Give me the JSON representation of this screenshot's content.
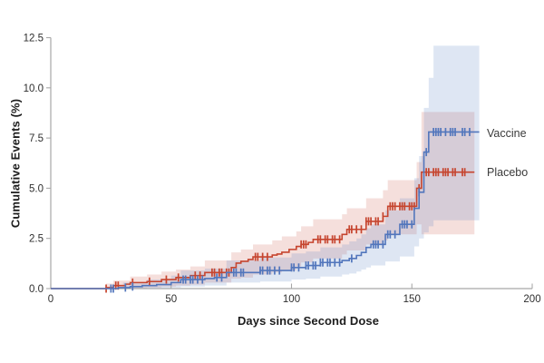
{
  "figure": {
    "background": "#ffffff"
  },
  "axes": {
    "x": {
      "label": "Days since Second Dose",
      "tick_labels": [
        "0",
        "50",
        "100",
        "150",
        "200"
      ],
      "tick_values": [
        0,
        50,
        100,
        150,
        200
      ],
      "range": [
        0,
        200
      ]
    },
    "y": {
      "label": "Cumulative Events (%)",
      "tick_labels": [
        "0.0",
        "2.5",
        "5.0",
        "7.5",
        "10.0",
        "12.5"
      ],
      "tick_values": [
        0,
        2.5,
        5,
        7.5,
        10,
        12.5
      ],
      "range": [
        0,
        12.5
      ]
    },
    "spine_color": "#a8a8a8",
    "tick_text_color": "#2e2e2e"
  },
  "legend": {
    "position": "right-of-curve-ends",
    "items": [
      {
        "label": "Vaccine",
        "color": "#5276bc"
      },
      {
        "label": "Placebo",
        "color": "#c6452f"
      }
    ]
  },
  "chart_data": {
    "type": "line",
    "subtype": "kaplan-meier-step-curves-with-confidence-bands-and-censor-ticks",
    "title": "",
    "xlabel": "Days since Second Dose",
    "ylabel": "Cumulative Events (%)",
    "xlim": [
      0,
      200
    ],
    "ylim": [
      0,
      12.5
    ],
    "x_ticks": [
      0,
      50,
      100,
      150,
      200
    ],
    "y_ticks": [
      0,
      2.5,
      5,
      7.5,
      10,
      12.5
    ],
    "grid": false,
    "legend_position": "right of final flat segments",
    "series": [
      {
        "name": "Placebo",
        "color": "#c6452f",
        "band_color": "rgba(198,67,47,0.17)",
        "end_day": 176,
        "steps": [
          [
            0,
            0
          ],
          [
            23,
            0.05
          ],
          [
            26,
            0.15
          ],
          [
            31,
            0.22
          ],
          [
            33,
            0.3
          ],
          [
            40,
            0.35
          ],
          [
            46,
            0.45
          ],
          [
            52,
            0.55
          ],
          [
            58,
            0.65
          ],
          [
            64,
            0.8
          ],
          [
            75,
            1.05
          ],
          [
            77,
            1.27
          ],
          [
            79,
            1.36
          ],
          [
            82,
            1.45
          ],
          [
            84,
            1.58
          ],
          [
            92,
            1.67
          ],
          [
            94,
            1.72
          ],
          [
            96,
            1.81
          ],
          [
            99,
            1.95
          ],
          [
            102,
            2.1
          ],
          [
            104,
            2.2
          ],
          [
            107,
            2.3
          ],
          [
            109,
            2.45
          ],
          [
            121,
            2.7
          ],
          [
            123,
            2.95
          ],
          [
            131,
            3.35
          ],
          [
            138,
            3.6
          ],
          [
            140,
            4.1
          ],
          [
            152,
            5.0
          ],
          [
            154,
            5.8
          ]
        ],
        "censor_marks": [
          [
            23,
            0
          ],
          [
            27,
            0.15
          ],
          [
            28,
            0.15
          ],
          [
            34,
            0.3
          ],
          [
            41,
            0.35
          ],
          [
            48,
            0.45
          ],
          [
            53,
            0.55
          ],
          [
            60,
            0.65
          ],
          [
            62,
            0.65
          ],
          [
            67,
            0.8
          ],
          [
            68,
            0.8
          ],
          [
            70,
            0.8
          ],
          [
            71,
            0.8
          ],
          [
            73,
            0.8
          ],
          [
            74,
            0.8
          ],
          [
            85,
            1.58
          ],
          [
            86,
            1.58
          ],
          [
            88,
            1.58
          ],
          [
            90,
            1.58
          ],
          [
            104,
            2.2
          ],
          [
            105,
            2.2
          ],
          [
            106,
            2.2
          ],
          [
            111,
            2.45
          ],
          [
            112,
            2.45
          ],
          [
            114,
            2.45
          ],
          [
            115,
            2.45
          ],
          [
            117,
            2.45
          ],
          [
            118,
            2.45
          ],
          [
            120,
            2.45
          ],
          [
            124,
            2.95
          ],
          [
            125,
            2.95
          ],
          [
            127,
            2.95
          ],
          [
            129,
            2.95
          ],
          [
            131,
            3.35
          ],
          [
            132,
            3.35
          ],
          [
            133,
            3.35
          ],
          [
            135,
            3.35
          ],
          [
            136,
            3.35
          ],
          [
            138,
            3.6
          ],
          [
            141,
            4.1
          ],
          [
            142,
            4.1
          ],
          [
            143,
            4.1
          ],
          [
            145,
            4.1
          ],
          [
            146,
            4.1
          ],
          [
            147,
            4.1
          ],
          [
            149,
            4.1
          ],
          [
            150,
            4.1
          ],
          [
            151,
            4.1
          ],
          [
            153,
            5.0
          ],
          [
            156,
            5.8
          ],
          [
            157,
            5.8
          ],
          [
            159,
            5.8
          ],
          [
            160,
            5.8
          ],
          [
            161,
            5.8
          ],
          [
            163,
            5.8
          ],
          [
            164,
            5.8
          ],
          [
            165,
            5.8
          ],
          [
            167,
            5.8
          ],
          [
            168,
            5.8
          ],
          [
            171,
            5.8
          ],
          [
            172,
            5.8
          ]
        ],
        "band": [
          [
            23,
            0,
            0.25
          ],
          [
            26,
            0,
            0.4
          ],
          [
            33,
            0.02,
            0.6
          ],
          [
            40,
            0.05,
            0.7
          ],
          [
            46,
            0.1,
            0.85
          ],
          [
            52,
            0.15,
            0.95
          ],
          [
            58,
            0.2,
            1.1
          ],
          [
            64,
            0.3,
            1.4
          ],
          [
            75,
            0.5,
            1.8
          ],
          [
            79,
            0.55,
            1.95
          ],
          [
            84,
            0.7,
            2.2
          ],
          [
            92,
            0.8,
            2.4
          ],
          [
            96,
            0.9,
            2.6
          ],
          [
            102,
            1.1,
            2.85
          ],
          [
            104,
            1.3,
            3.1
          ],
          [
            109,
            1.5,
            3.45
          ],
          [
            121,
            1.7,
            3.7
          ],
          [
            123,
            1.9,
            4.0
          ],
          [
            131,
            2.2,
            4.5
          ],
          [
            138,
            2.4,
            4.9
          ],
          [
            140,
            2.7,
            5.4
          ],
          [
            152,
            3.2,
            6.3
          ],
          [
            154,
            2.7,
            8.8
          ],
          [
            176,
            2.7,
            8.8
          ]
        ]
      },
      {
        "name": "Vaccine",
        "color": "#5276bc",
        "band_color": "rgba(91,130,196,0.20)",
        "end_day": 178,
        "steps": [
          [
            0,
            0
          ],
          [
            28,
            0.05
          ],
          [
            33,
            0.1
          ],
          [
            38,
            0.15
          ],
          [
            44,
            0.2
          ],
          [
            50,
            0.3
          ],
          [
            54,
            0.45
          ],
          [
            64,
            0.5
          ],
          [
            68,
            0.55
          ],
          [
            73,
            0.8
          ],
          [
            87,
            0.9
          ],
          [
            100,
            1.05
          ],
          [
            106,
            1.15
          ],
          [
            112,
            1.3
          ],
          [
            121,
            1.4
          ],
          [
            124,
            1.5
          ],
          [
            127,
            1.65
          ],
          [
            129,
            1.8
          ],
          [
            131,
            2.05
          ],
          [
            133,
            2.2
          ],
          [
            139,
            2.7
          ],
          [
            145,
            3.2
          ],
          [
            151,
            4.0
          ],
          [
            153,
            4.8
          ],
          [
            155,
            6.8
          ],
          [
            157,
            7.8
          ]
        ],
        "censor_marks": [
          [
            25,
            0
          ],
          [
            26,
            0
          ],
          [
            31,
            0.05
          ],
          [
            34,
            0.1
          ],
          [
            55,
            0.45
          ],
          [
            56,
            0.45
          ],
          [
            58,
            0.45
          ],
          [
            59,
            0.45
          ],
          [
            61,
            0.45
          ],
          [
            63,
            0.45
          ],
          [
            69,
            0.55
          ],
          [
            71,
            0.55
          ],
          [
            76,
            0.8
          ],
          [
            77,
            0.8
          ],
          [
            79,
            0.8
          ],
          [
            80,
            0.8
          ],
          [
            87,
            0.9
          ],
          [
            88,
            0.9
          ],
          [
            90,
            0.9
          ],
          [
            91,
            0.9
          ],
          [
            93,
            0.9
          ],
          [
            95,
            0.9
          ],
          [
            100,
            1.05
          ],
          [
            101,
            1.05
          ],
          [
            103,
            1.05
          ],
          [
            106,
            1.15
          ],
          [
            107,
            1.15
          ],
          [
            109,
            1.15
          ],
          [
            110,
            1.15
          ],
          [
            112,
            1.3
          ],
          [
            113,
            1.3
          ],
          [
            115,
            1.3
          ],
          [
            116,
            1.3
          ],
          [
            118,
            1.3
          ],
          [
            120,
            1.3
          ],
          [
            125,
            1.5
          ],
          [
            134,
            2.2
          ],
          [
            135,
            2.2
          ],
          [
            136,
            2.2
          ],
          [
            138,
            2.2
          ],
          [
            140,
            2.7
          ],
          [
            141,
            2.7
          ],
          [
            143,
            2.7
          ],
          [
            146,
            3.2
          ],
          [
            147,
            3.2
          ],
          [
            148,
            3.2
          ],
          [
            150,
            3.2
          ],
          [
            153,
            4.8
          ],
          [
            156,
            6.8
          ],
          [
            159,
            7.8
          ],
          [
            160,
            7.8
          ],
          [
            161,
            7.8
          ],
          [
            162,
            7.8
          ],
          [
            164,
            7.8
          ],
          [
            166,
            7.8
          ],
          [
            167,
            7.8
          ],
          [
            168,
            7.8
          ],
          [
            171,
            7.8
          ],
          [
            172,
            7.8
          ],
          [
            174,
            7.8
          ]
        ],
        "band": [
          [
            30,
            0,
            0.3
          ],
          [
            40,
            0,
            0.45
          ],
          [
            50,
            0.05,
            0.65
          ],
          [
            54,
            0.1,
            0.9
          ],
          [
            64,
            0.15,
            1.0
          ],
          [
            73,
            0.3,
            1.4
          ],
          [
            87,
            0.35,
            1.55
          ],
          [
            100,
            0.45,
            1.75
          ],
          [
            106,
            0.5,
            1.85
          ],
          [
            112,
            0.6,
            2.05
          ],
          [
            121,
            0.7,
            2.2
          ],
          [
            124,
            0.75,
            2.35
          ],
          [
            127,
            0.85,
            2.5
          ],
          [
            129,
            0.95,
            2.7
          ],
          [
            131,
            1.05,
            3.0
          ],
          [
            133,
            1.15,
            3.2
          ],
          [
            139,
            1.35,
            3.9
          ],
          [
            145,
            1.6,
            4.5
          ],
          [
            151,
            2.1,
            5.5
          ],
          [
            153,
            2.5,
            6.6
          ],
          [
            155,
            2.8,
            9.0
          ],
          [
            157,
            3.1,
            10.5
          ],
          [
            159,
            3.4,
            12.1
          ],
          [
            178,
            3.4,
            12.1
          ]
        ]
      }
    ]
  }
}
